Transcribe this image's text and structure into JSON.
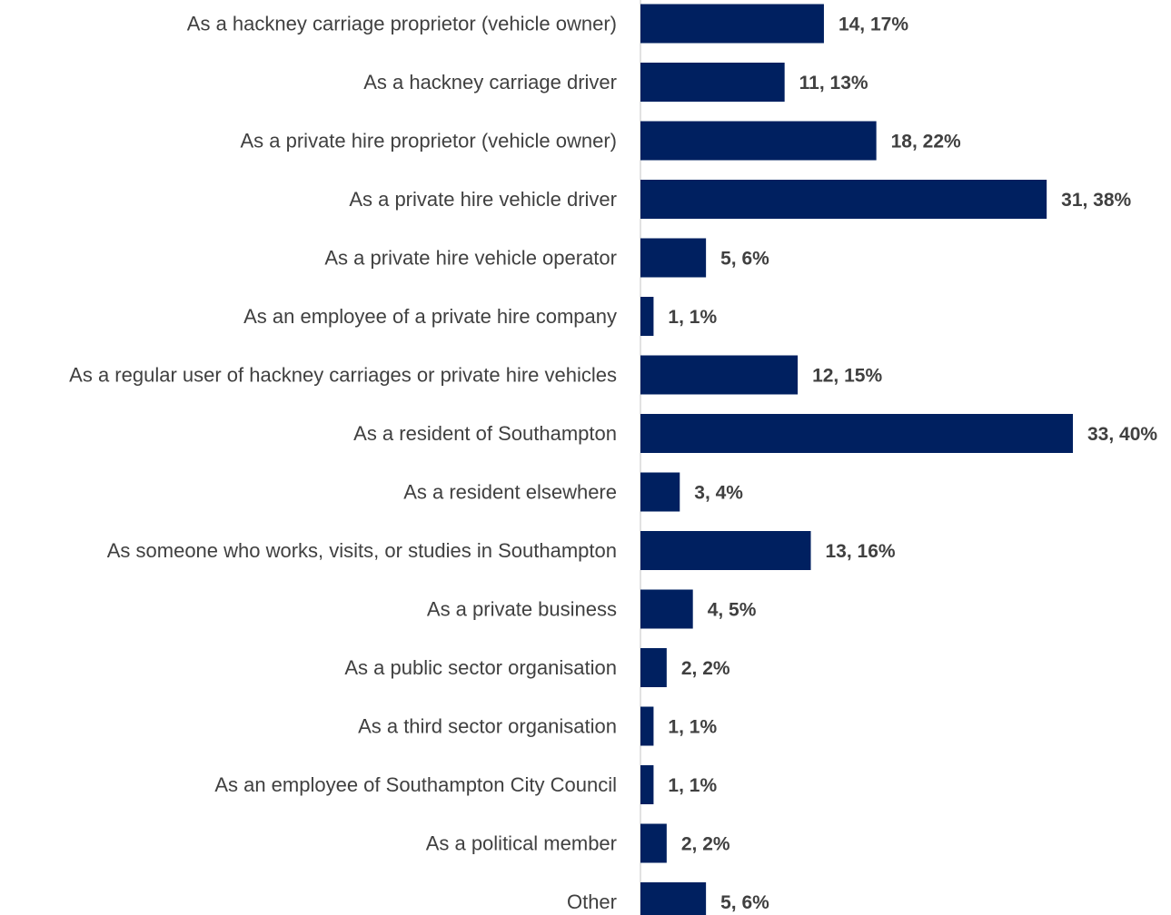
{
  "chart_data": {
    "type": "bar",
    "orientation": "horizontal",
    "categories": [
      "As a hackney carriage proprietor (vehicle owner)",
      "As a hackney carriage driver",
      "As a private hire proprietor (vehicle owner)",
      "As a private hire vehicle driver",
      "As a private hire vehicle operator",
      "As an employee of a private hire company",
      "As a regular user of hackney carriages or private hire vehicles",
      "As a resident of Southampton",
      "As a resident elsewhere",
      "As someone who works, visits, or studies in Southampton",
      "As a private business",
      "As a public sector organisation",
      "As a third sector organisation",
      "As an employee of Southampton City Council",
      "As a political member",
      "Other"
    ],
    "values": [
      14,
      11,
      18,
      31,
      5,
      1,
      12,
      33,
      3,
      13,
      4,
      2,
      1,
      1,
      2,
      5
    ],
    "percentages": [
      17,
      13,
      22,
      38,
      6,
      1,
      15,
      40,
      4,
      16,
      5,
      2,
      1,
      1,
      2,
      6
    ],
    "data_labels": [
      "14, 17%",
      "11, 13%",
      "18, 22%",
      "31, 38%",
      "5, 6%",
      "1, 1%",
      "12, 15%",
      "33, 40%",
      "3, 4%",
      "13, 16%",
      "4, 5%",
      "2, 2%",
      "1, 1%",
      "1, 1%",
      "2, 2%",
      "5, 6%"
    ],
    "title": "",
    "xlabel": "",
    "ylabel": "",
    "xlim": [
      0,
      33
    ],
    "grid": false,
    "legend": "none",
    "bar_color": "#002060",
    "axis_color": "#d9d9d9",
    "label_color": "#404040"
  }
}
